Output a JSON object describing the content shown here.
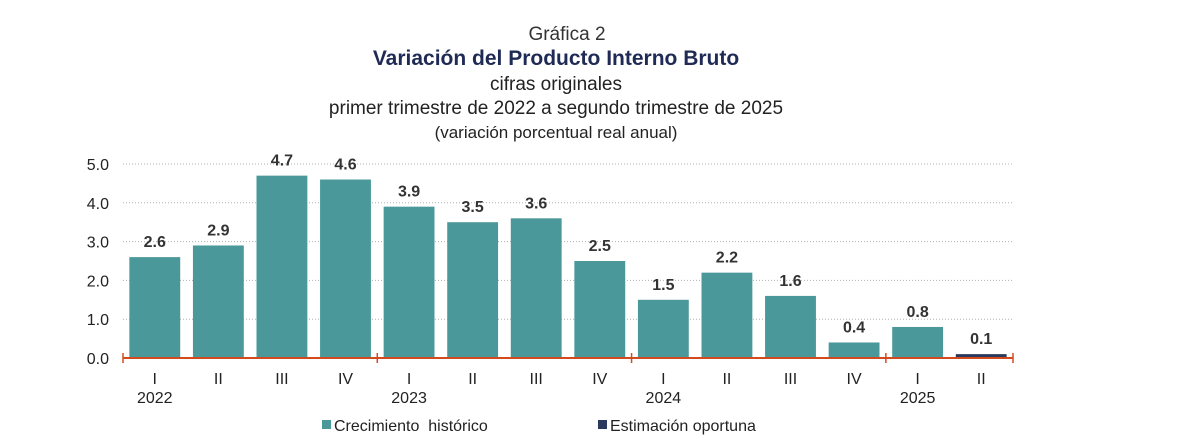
{
  "chart_data": {
    "type": "bar",
    "heading": "Gráfica 2",
    "title": "Variación del Producto Interno Bruto",
    "subtitle": "cifras originales",
    "period": "primer trimestre de 2022 a segundo trimestre de 2025",
    "units": "(variación porcentual real anual)",
    "categories": [
      "I",
      "II",
      "III",
      "IV",
      "I",
      "II",
      "III",
      "IV",
      "I",
      "II",
      "III",
      "IV",
      "I",
      "II"
    ],
    "category_groups": [
      "2022",
      "2023",
      "2024",
      "2025"
    ],
    "series": [
      {
        "name": "Crecimiento  histórico",
        "color": "#4a989a",
        "values": [
          2.6,
          2.9,
          4.7,
          4.6,
          3.9,
          3.5,
          3.6,
          2.5,
          1.5,
          2.2,
          1.6,
          0.4,
          0.8,
          null
        ]
      },
      {
        "name": "Estimación oportuna",
        "color": "#2b3a5c",
        "values": [
          null,
          null,
          null,
          null,
          null,
          null,
          null,
          null,
          null,
          null,
          null,
          null,
          null,
          0.1
        ]
      }
    ],
    "ylim": [
      0,
      5
    ],
    "yticks": [
      {
        "value": 0,
        "label": "0.0"
      },
      {
        "value": 1,
        "label": "1.0"
      },
      {
        "value": 2,
        "label": "2.0"
      },
      {
        "value": 3,
        "label": "3.0"
      },
      {
        "value": 4,
        "label": "4.0"
      },
      {
        "value": 5,
        "label": "5.0"
      }
    ],
    "grid": true
  }
}
